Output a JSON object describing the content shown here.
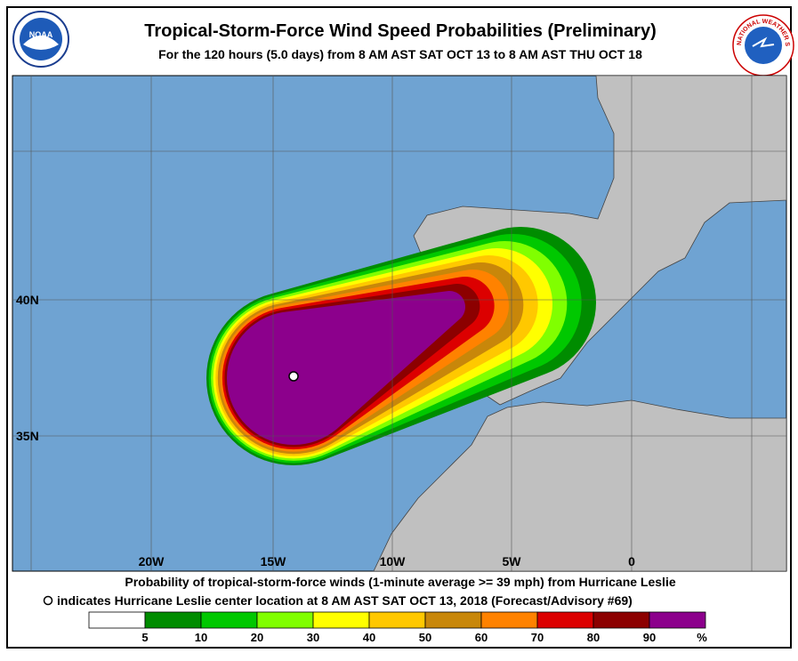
{
  "header": {
    "title": "Tropical-Storm-Force Wind Speed Probabilities (Preliminary)",
    "subtitle": "For the 120 hours (5.0 days) from 8 AM AST SAT OCT 13 to 8 AM AST THU OCT 18"
  },
  "logos": {
    "noaa": "NOAA",
    "nws": "NATIONAL WEATHER SERVICE"
  },
  "map": {
    "lat_labels": [
      "40N",
      "35N"
    ],
    "lon_labels": [
      "20W",
      "15W",
      "10W",
      "5W",
      "0"
    ]
  },
  "footer": {
    "line1": "Probability of tropical-storm-force winds (1-minute average >= 39 mph) from Hurricane Leslie",
    "line2": "indicates Hurricane Leslie center location at 8 AM AST SAT OCT 13, 2018 (Forecast/Advisory #69)"
  },
  "legend": {
    "colors": [
      "#ffffff",
      "#008c00",
      "#00c800",
      "#80ff00",
      "#ffff00",
      "#ffc800",
      "#c8870a",
      "#ff8200",
      "#dc0000",
      "#8c0000",
      "#8c008c"
    ],
    "labels": [
      5,
      10,
      20,
      30,
      40,
      50,
      60,
      70,
      80,
      90
    ],
    "unit": "%"
  }
}
